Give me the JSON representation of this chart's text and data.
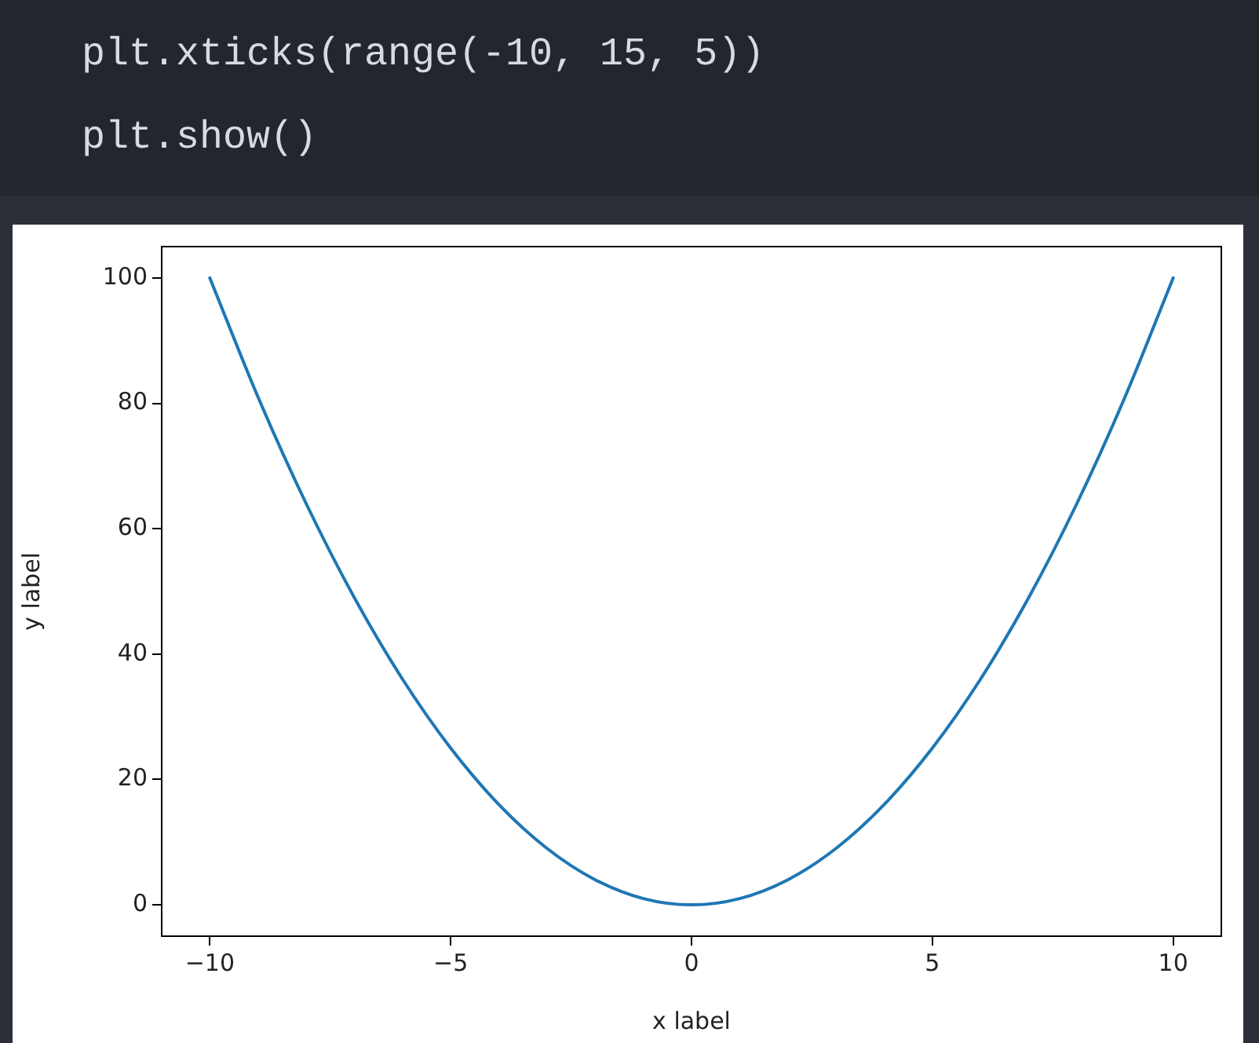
{
  "chart_data": {
    "type": "line",
    "xlabel": "x label",
    "ylabel": "y label",
    "annotations": [
      "plt.xticks(range(-10, 15, 5))",
      "plt.show()"
    ],
    "x": [
      -10,
      -9,
      -8,
      -7,
      -6,
      -5,
      -4,
      -3,
      -2,
      -1,
      0,
      1,
      2,
      3,
      4,
      5,
      6,
      7,
      8,
      9,
      10
    ],
    "series": [
      {
        "color": "#1f77b4",
        "values": [
          100,
          81,
          64,
          49,
          36,
          25,
          16,
          9,
          4,
          1,
          0,
          1,
          4,
          9,
          16,
          25,
          36,
          49,
          64,
          81,
          100
        ]
      }
    ],
    "xlim": [
      -11,
      11
    ],
    "xticks": [
      -10,
      -5,
      0,
      5,
      10
    ],
    "ylim": [
      -5,
      105
    ],
    "yticks": [
      0,
      20,
      40,
      60,
      80,
      100
    ],
    "grid": false,
    "legend": false,
    "marker": "none",
    "line_style": "solid"
  }
}
